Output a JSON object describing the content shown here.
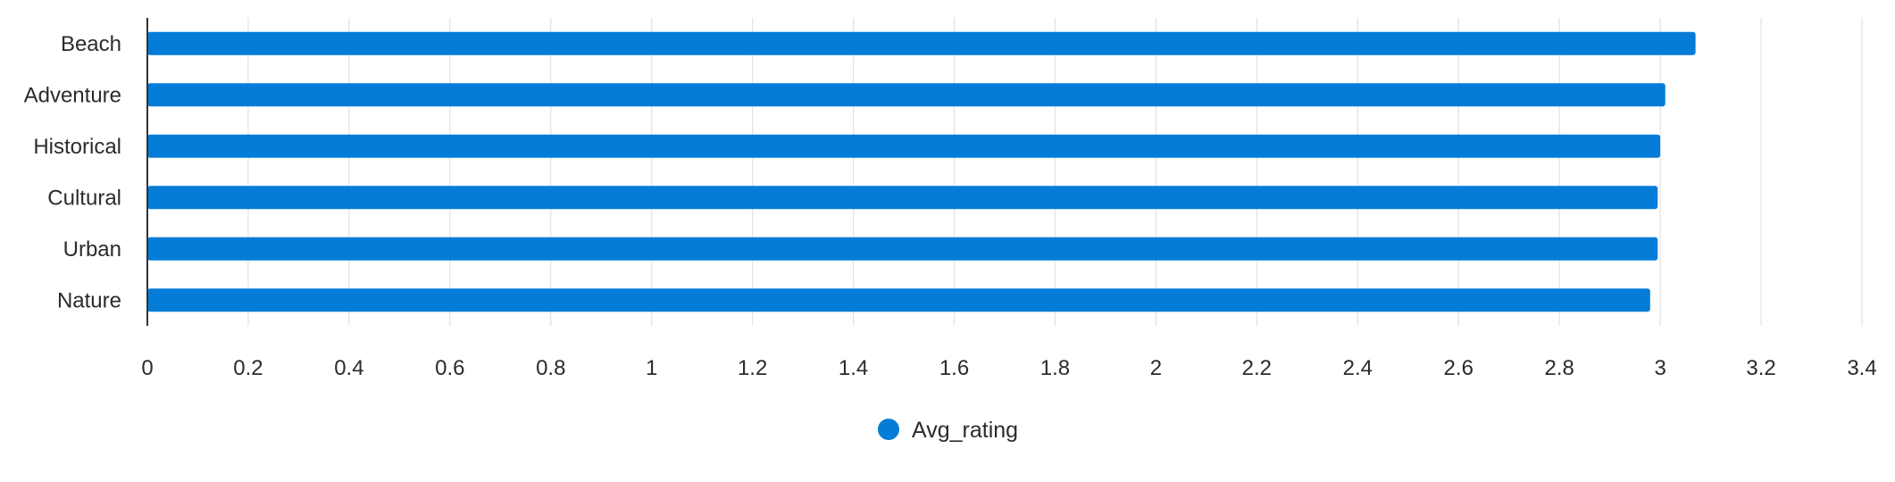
{
  "chart_data": {
    "type": "bar",
    "orientation": "horizontal",
    "categories": [
      "Beach",
      "Adventure",
      "Historical",
      "Cultural",
      "Urban",
      "Nature"
    ],
    "series": [
      {
        "name": "Avg_rating",
        "values": [
          3.07,
          3.01,
          3.0,
          2.995,
          2.995,
          2.98
        ],
        "color": "#057cd8"
      }
    ],
    "xlim": [
      0,
      3.4
    ],
    "xticks": [
      "0",
      "0.2",
      "0.4",
      "0.6",
      "0.8",
      "1",
      "1.2",
      "1.4",
      "1.6",
      "1.8",
      "2",
      "2.2",
      "2.4",
      "2.6",
      "2.8",
      "3",
      "3.2",
      "3.4"
    ],
    "title": "",
    "xlabel": "",
    "ylabel": "",
    "grid": true,
    "legend_position": "bottom-center"
  }
}
